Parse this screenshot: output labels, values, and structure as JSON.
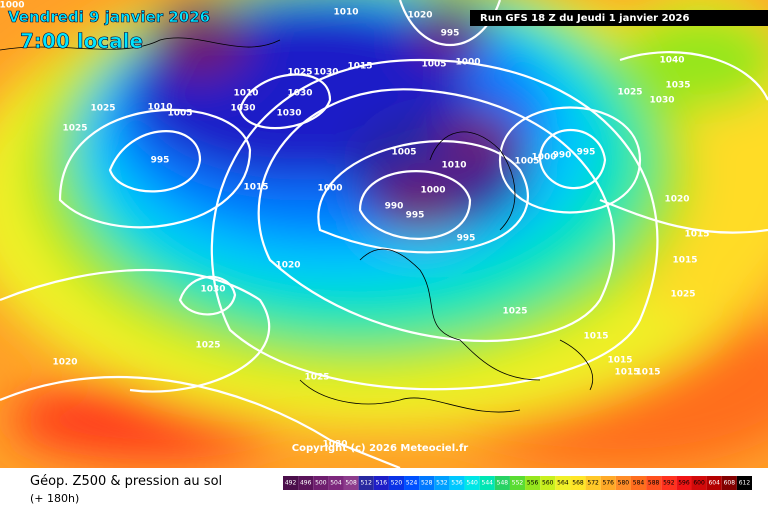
{
  "header": {
    "valid_date": "Vendredi 9 janvier 2026",
    "local_time": "7:00 locale",
    "run": "Run GFS 18 Z du Jeudi 1 janvier 2026"
  },
  "map": {
    "isobar_labels": [
      1000,
      1010,
      1020,
      995,
      1005,
      1000,
      1030,
      1025,
      1015,
      1010,
      1030,
      1030,
      1030,
      1005,
      1010,
      1025,
      1025,
      995,
      1005,
      1010,
      1005,
      1000,
      990,
      995,
      1040,
      1035,
      1025,
      1030,
      1015,
      1000,
      1000,
      990,
      995,
      995,
      1020,
      1015,
      1015,
      1025,
      1020,
      1030,
      1025,
      1015,
      1025,
      1020,
      1025,
      1015,
      1015,
      1015,
      1030
    ],
    "copyright": "Copyright (c) 2026 Meteociel.fr"
  },
  "footer": {
    "title": "Géop. Z500 & pression au sol",
    "lead": "(+ 180h)",
    "scale": [
      {
        "value": 492,
        "color": "#4b0f4b"
      },
      {
        "value": 496,
        "color": "#5a145a"
      },
      {
        "value": 500,
        "color": "#6e1e6e"
      },
      {
        "value": 504,
        "color": "#7d287d"
      },
      {
        "value": 508,
        "color": "#8c3c8c"
      },
      {
        "value": 512,
        "color": "#2828a0"
      },
      {
        "value": 516,
        "color": "#1e1ec8"
      },
      {
        "value": 520,
        "color": "#0a32e6"
      },
      {
        "value": 524,
        "color": "#0050ff"
      },
      {
        "value": 528,
        "color": "#0078ff"
      },
      {
        "value": 532,
        "color": "#00a0ff"
      },
      {
        "value": 536,
        "color": "#00c8ff"
      },
      {
        "value": 540,
        "color": "#00e6e6"
      },
      {
        "value": 544,
        "color": "#00e6b4"
      },
      {
        "value": 548,
        "color": "#28d264"
      },
      {
        "value": 552,
        "color": "#5adc32"
      },
      {
        "value": 556,
        "color": "#96e61e"
      },
      {
        "value": 560,
        "color": "#c8f01e"
      },
      {
        "value": 564,
        "color": "#f0f028"
      },
      {
        "value": 568,
        "color": "#ffe628"
      },
      {
        "value": 572,
        "color": "#ffc828"
      },
      {
        "value": 576,
        "color": "#ffaa28"
      },
      {
        "value": 580,
        "color": "#ff8c28"
      },
      {
        "value": 584,
        "color": "#ff6e1e"
      },
      {
        "value": 588,
        "color": "#ff501e"
      },
      {
        "value": 592,
        "color": "#ff321e"
      },
      {
        "value": 596,
        "color": "#f01414"
      },
      {
        "value": 600,
        "color": "#d20a0a"
      },
      {
        "value": 604,
        "color": "#b40000"
      },
      {
        "value": 608,
        "color": "#820000"
      },
      {
        "value": 612,
        "color": "#000000"
      }
    ]
  }
}
